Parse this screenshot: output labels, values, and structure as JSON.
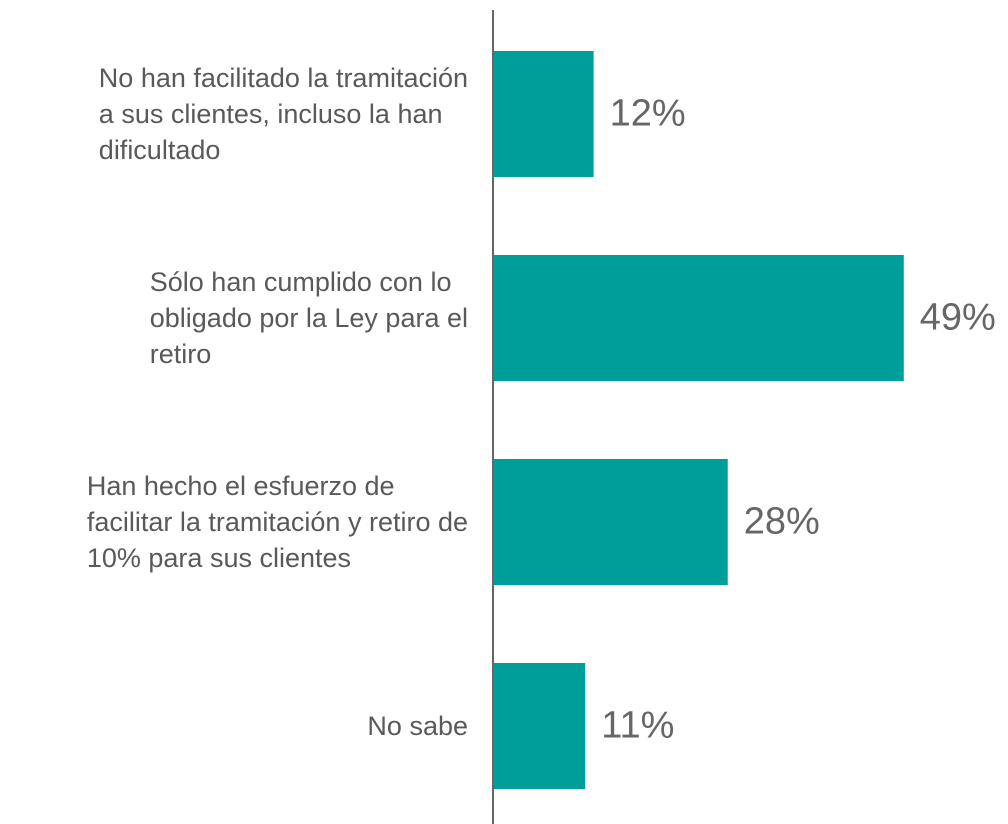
{
  "chart_data": {
    "type": "bar",
    "orientation": "horizontal",
    "categories": [
      "No han facilitado la tramitación\na sus clientes, incluso la han\ndificultado",
      "Sólo han cumplido con lo\nobligado por la Ley para el\nretiro",
      "Han hecho el esfuerzo de\nfacilitar la tramitación y retiro de\n10% para sus clientes",
      "No sabe"
    ],
    "values": [
      12,
      49,
      28,
      11
    ],
    "value_labels": [
      "12%",
      "49%",
      "28%",
      "11%"
    ],
    "color": "#009e9a",
    "xlim": [
      0,
      60
    ]
  }
}
